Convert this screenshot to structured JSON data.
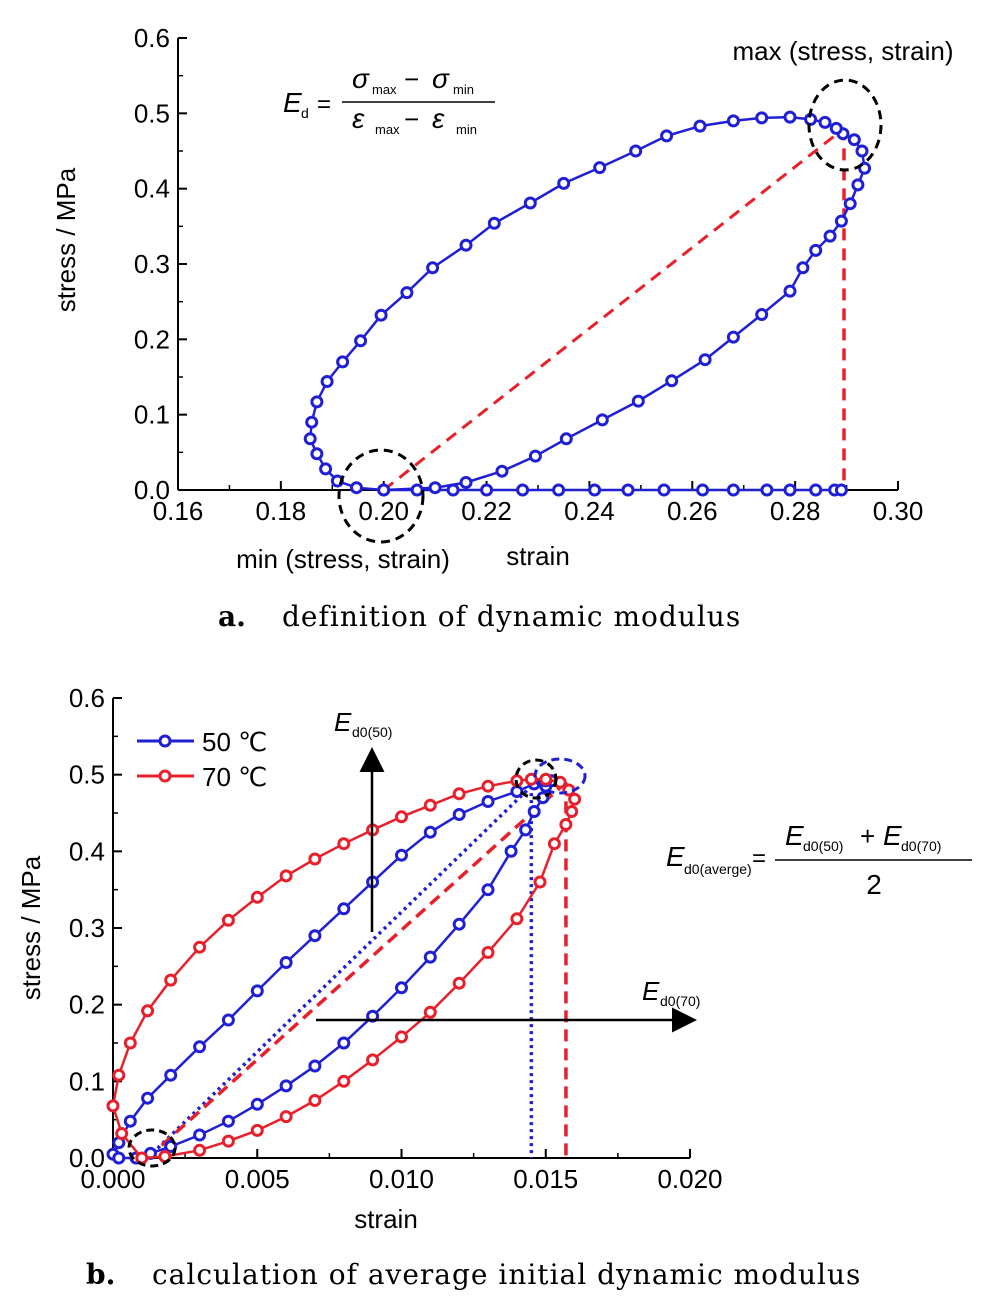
{
  "panel_a": {
    "caption_label": "a.",
    "caption_text": "definition of dynamic modulus",
    "annotation_max": "max (stress, strain)",
    "annotation_min": "min (stress, strain)",
    "formula": {
      "lhs_symbol": "E",
      "lhs_sub": "d",
      "equals": "=",
      "num_a": "σ",
      "num_a_sub": "max",
      "minus": "−",
      "num_b": "σ",
      "num_b_sub": "min",
      "den_a": "ε",
      "den_a_sub": "max",
      "den_b": "ε",
      "den_b_sub": "min"
    }
  },
  "panel_b": {
    "caption_label": "b.",
    "caption_text": "calculation of average initial dynamic modulus",
    "arrow_up_label": "E",
    "arrow_up_sub": "d0(50)",
    "arrow_right_label": "E",
    "arrow_right_sub": "d0(70)",
    "formula": {
      "lhs": "E",
      "lhs_sub": "d0(averge)",
      "equals": "=",
      "num_a": "E",
      "num_a_sub": "d0(50)",
      "plus": "+",
      "num_b": "E",
      "num_b_sub": "d0(70)",
      "den": "2"
    }
  },
  "chart_data": [
    {
      "type": "line",
      "xlabel": "strain",
      "ylabel": "stress / MPa",
      "xlim": [
        0.16,
        0.3
      ],
      "ylim": [
        0.0,
        0.6
      ],
      "x_ticks": [
        "0.16",
        "0.18",
        "0.20",
        "0.22",
        "0.24",
        "0.26",
        "0.28",
        "0.30"
      ],
      "y_ticks": [
        "0.0",
        "0.1",
        "0.2",
        "0.3",
        "0.4",
        "0.5",
        "0.6"
      ],
      "grid": false,
      "series": [
        {
          "color": "#1f1fd6",
          "marker": "open-circle",
          "x": [
            0.2,
            0.21,
            0.216,
            0.223,
            0.2295,
            0.2355,
            0.2425,
            0.2495,
            0.256,
            0.2625,
            0.268,
            0.2735,
            0.279,
            0.2815,
            0.284,
            0.2868,
            0.289,
            0.2907,
            0.2922,
            0.2935,
            0.293,
            0.2915,
            0.2893,
            0.288,
            0.2858,
            0.283,
            0.279,
            0.2735,
            0.268,
            0.2615,
            0.255,
            0.249,
            0.242,
            0.235,
            0.2285,
            0.2215,
            0.216,
            0.2095,
            0.2045,
            0.1995,
            0.1955,
            0.192,
            0.189,
            0.187,
            0.186,
            0.1857,
            0.187,
            0.1887,
            0.191,
            0.1947,
            0.2,
            0.2065,
            0.2135,
            0.22,
            0.227,
            0.234,
            0.241,
            0.2475,
            0.2545,
            0.262,
            0.268,
            0.2745,
            0.279,
            0.284,
            0.2877,
            0.289
          ],
          "y": [
            0.0,
            0.003,
            0.01,
            0.025,
            0.045,
            0.068,
            0.093,
            0.118,
            0.145,
            0.173,
            0.203,
            0.233,
            0.264,
            0.295,
            0.318,
            0.337,
            0.357,
            0.38,
            0.405,
            0.427,
            0.45,
            0.465,
            0.473,
            0.48,
            0.488,
            0.492,
            0.495,
            0.494,
            0.49,
            0.483,
            0.47,
            0.45,
            0.428,
            0.407,
            0.381,
            0.354,
            0.325,
            0.295,
            0.262,
            0.232,
            0.198,
            0.17,
            0.144,
            0.117,
            0.09,
            0.068,
            0.048,
            0.028,
            0.012,
            0.003,
            0.0,
            0.0,
            0.0,
            0.0,
            0.0,
            0.0,
            0.0,
            0.0,
            0.0,
            0.0,
            0.0,
            0.0,
            0.0,
            0.0,
            0.0,
            0.0
          ]
        }
      ],
      "secant": {
        "x": [
          0.2,
          0.2895
        ],
        "y": [
          0.0,
          0.48
        ]
      },
      "max_drop": {
        "x": 0.2895,
        "y": 0.48
      }
    },
    {
      "type": "line",
      "xlabel": "strain",
      "ylabel": "stress / MPa",
      "xlim": [
        0.0,
        0.02
      ],
      "ylim": [
        0.0,
        0.6
      ],
      "x_ticks": [
        "0.000",
        "0.005",
        "0.010",
        "0.015",
        "0.020"
      ],
      "y_ticks": [
        "0.0",
        "0.1",
        "0.2",
        "0.3",
        "0.4",
        "0.5",
        "0.6"
      ],
      "grid": false,
      "legend_position": "top-left",
      "series": [
        {
          "name": "50 ℃",
          "color": "#1f1fd6",
          "marker": "open-circle",
          "x": [
            0.0008,
            0.0013,
            0.002,
            0.003,
            0.004,
            0.005,
            0.006,
            0.007,
            0.008,
            0.009,
            0.01,
            0.011,
            0.012,
            0.013,
            0.0138,
            0.0143,
            0.0146,
            0.0149,
            0.015,
            0.0152,
            0.015,
            0.0146,
            0.014,
            0.013,
            0.012,
            0.011,
            0.01,
            0.009,
            0.008,
            0.007,
            0.006,
            0.005,
            0.004,
            0.003,
            0.002,
            0.0012,
            0.0006,
            0.0002,
            0.0,
            0.0002,
            0.0008
          ],
          "y": [
            0.0,
            0.006,
            0.015,
            0.03,
            0.048,
            0.07,
            0.094,
            0.12,
            0.15,
            0.185,
            0.222,
            0.262,
            0.305,
            0.35,
            0.4,
            0.428,
            0.452,
            0.47,
            0.485,
            0.492,
            0.492,
            0.488,
            0.478,
            0.465,
            0.448,
            0.425,
            0.395,
            0.36,
            0.325,
            0.29,
            0.255,
            0.218,
            0.18,
            0.145,
            0.108,
            0.078,
            0.048,
            0.02,
            0.005,
            0.0,
            0.0
          ]
        },
        {
          "name": "70 ℃",
          "color": "#e8202b",
          "marker": "open-circle",
          "x": [
            0.001,
            0.0018,
            0.003,
            0.004,
            0.005,
            0.006,
            0.007,
            0.008,
            0.009,
            0.01,
            0.011,
            0.012,
            0.013,
            0.014,
            0.0148,
            0.0153,
            0.0157,
            0.0159,
            0.016,
            0.0158,
            0.0155,
            0.015,
            0.0145,
            0.014,
            0.013,
            0.012,
            0.011,
            0.01,
            0.009,
            0.008,
            0.007,
            0.006,
            0.005,
            0.004,
            0.003,
            0.002,
            0.0012,
            0.0006,
            0.0002,
            0.0,
            0.0003
          ],
          "y": [
            0.0,
            0.002,
            0.01,
            0.022,
            0.036,
            0.054,
            0.075,
            0.1,
            0.128,
            0.158,
            0.19,
            0.228,
            0.268,
            0.312,
            0.36,
            0.41,
            0.435,
            0.452,
            0.468,
            0.48,
            0.49,
            0.494,
            0.494,
            0.492,
            0.485,
            0.475,
            0.46,
            0.445,
            0.428,
            0.41,
            0.39,
            0.368,
            0.34,
            0.31,
            0.275,
            0.232,
            0.192,
            0.15,
            0.108,
            0.068,
            0.032
          ]
        }
      ],
      "secants": [
        {
          "name": "50 ℃",
          "x": [
            0.0012,
            0.0145
          ],
          "y": [
            0.0,
            0.485
          ],
          "style": "dotted"
        },
        {
          "name": "70 ℃",
          "x": [
            0.0012,
            0.0157
          ],
          "y": [
            0.0,
            0.49
          ],
          "style": "dashed"
        }
      ]
    }
  ]
}
